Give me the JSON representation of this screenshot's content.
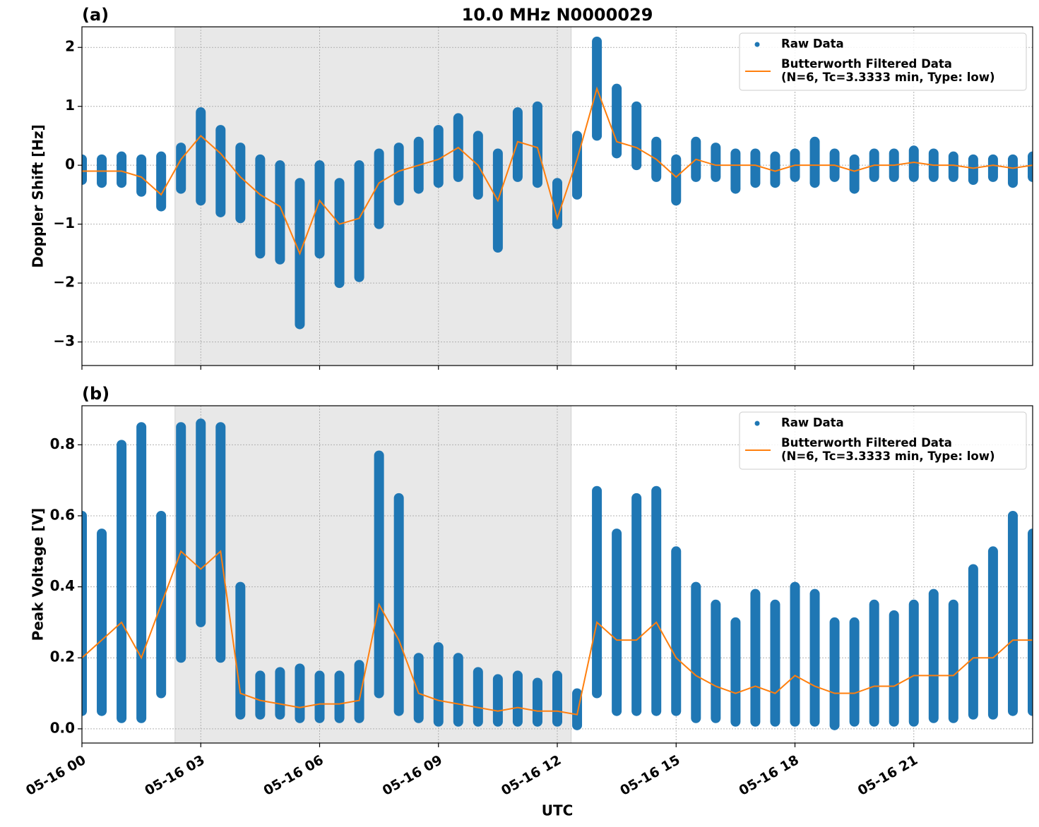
{
  "chart_data": [
    {
      "type": "line",
      "panel_label": "(a)",
      "title": "10.0 MHz N0000029",
      "ylabel": "Doppler Shift [Hz]",
      "xlim": [
        0,
        24
      ],
      "xticks": [
        0,
        3,
        6,
        9,
        12,
        15,
        18,
        21
      ],
      "ylim": [
        -3.4,
        2.35
      ],
      "yticks": [
        {
          "value": -3,
          "label": "−3"
        },
        {
          "value": -2,
          "label": "−2"
        },
        {
          "value": -1,
          "label": "−1"
        },
        0,
        1,
        2
      ],
      "grid": true,
      "legend": "upper right",
      "shade": [
        2.35,
        12.35
      ],
      "x": [
        0,
        0.5,
        1,
        1.5,
        2,
        2.5,
        3,
        3.5,
        4,
        4.5,
        5,
        5.5,
        6,
        6.5,
        7,
        7.5,
        8,
        8.5,
        9,
        9.5,
        10,
        10.5,
        11,
        11.5,
        12,
        12.5,
        13,
        13.5,
        14,
        14.5,
        15,
        15.5,
        16,
        16.5,
        17,
        17.5,
        18,
        18.5,
        19,
        19.5,
        20,
        20.5,
        21,
        21.5,
        22,
        22.5,
        23,
        23.5,
        24
      ],
      "series": [
        {
          "name": "Raw Data",
          "color": "#1f77b4",
          "values": [
            [
              -0.25,
              0.1
            ],
            [
              -0.3,
              0.1
            ],
            [
              -0.3,
              0.15
            ],
            [
              -0.45,
              0.1
            ],
            [
              -0.7,
              0.15
            ],
            [
              -0.4,
              0.3
            ],
            [
              -0.6,
              0.9
            ],
            [
              -0.8,
              0.6
            ],
            [
              -0.9,
              0.3
            ],
            [
              -1.5,
              0.1
            ],
            [
              -1.6,
              0
            ],
            [
              -2.7,
              -0.3
            ],
            [
              -1.5,
              0
            ],
            [
              -2,
              -0.3
            ],
            [
              -1.9,
              0
            ],
            [
              -1,
              0.2
            ],
            [
              -0.6,
              0.3
            ],
            [
              -0.4,
              0.4
            ],
            [
              -0.3,
              0.6
            ],
            [
              -0.2,
              0.8
            ],
            [
              -0.5,
              0.5
            ],
            [
              -1.4,
              0.2
            ],
            [
              -0.2,
              0.9
            ],
            [
              -0.3,
              1
            ],
            [
              -1,
              -0.3
            ],
            [
              -0.5,
              0.5
            ],
            [
              0.5,
              2.1
            ],
            [
              0.2,
              1.3
            ],
            [
              0,
              1
            ],
            [
              -0.2,
              0.4
            ],
            [
              -0.6,
              0.1
            ],
            [
              -0.2,
              0.4
            ],
            [
              -0.2,
              0.3
            ],
            [
              -0.4,
              0.2
            ],
            [
              -0.3,
              0.2
            ],
            [
              -0.3,
              0.15
            ],
            [
              -0.2,
              0.2
            ],
            [
              -0.3,
              0.4
            ],
            [
              -0.2,
              0.2
            ],
            [
              -0.4,
              0.1
            ],
            [
              -0.2,
              0.2
            ],
            [
              -0.2,
              0.2
            ],
            [
              -0.2,
              0.25
            ],
            [
              -0.2,
              0.2
            ],
            [
              -0.2,
              0.15
            ],
            [
              -0.25,
              0.1
            ],
            [
              -0.2,
              0.1
            ],
            [
              -0.3,
              0.1
            ],
            [
              -0.2,
              0.15
            ]
          ]
        },
        {
          "name": "Butterworth Filtered Data\n(N=6, Tc=3.3333 min, Type: low)",
          "color": "#ff7f0e",
          "values": [
            -0.1,
            -0.1,
            -0.1,
            -0.2,
            -0.5,
            0.1,
            0.5,
            0.2,
            -0.2,
            -0.5,
            -0.7,
            -1.5,
            -0.6,
            -1,
            -0.9,
            -0.3,
            -0.1,
            0,
            0.1,
            0.3,
            0,
            -0.6,
            0.4,
            0.3,
            -0.9,
            0.1,
            1.3,
            0.4,
            0.3,
            0.1,
            -0.2,
            0.1,
            0,
            0,
            0,
            -0.1,
            0,
            0,
            0,
            -0.1,
            0,
            0,
            0.05,
            0,
            0,
            -0.05,
            0,
            -0.05,
            0
          ]
        }
      ]
    },
    {
      "type": "line",
      "panel_label": "(b)",
      "ylabel": "Peak Voltage [V]",
      "xlabel": "UTC",
      "xlim": [
        0,
        24
      ],
      "xticks": [
        {
          "value": 0,
          "label": "05-16 00"
        },
        {
          "value": 3,
          "label": "05-16 03"
        },
        {
          "value": 6,
          "label": "05-16 06"
        },
        {
          "value": 9,
          "label": "05-16 09"
        },
        {
          "value": 12,
          "label": "05-16 12"
        },
        {
          "value": 15,
          "label": "05-16 15"
        },
        {
          "value": 18,
          "label": "05-16 18"
        },
        {
          "value": 21,
          "label": "05-16 21"
        }
      ],
      "ylim": [
        -0.04,
        0.91
      ],
      "yticks": [
        {
          "value": 0,
          "label": "0.0"
        },
        0.2,
        0.4,
        0.6,
        0.8
      ],
      "grid": true,
      "legend": "upper right",
      "shade": [
        2.35,
        12.35
      ],
      "x": [
        0,
        0.5,
        1,
        1.5,
        2,
        2.5,
        3,
        3.5,
        4,
        4.5,
        5,
        5.5,
        6,
        6.5,
        7,
        7.5,
        8,
        8.5,
        9,
        9.5,
        10,
        10.5,
        11,
        11.5,
        12,
        12.5,
        13,
        13.5,
        14,
        14.5,
        15,
        15.5,
        16,
        16.5,
        17,
        17.5,
        18,
        18.5,
        19,
        19.5,
        20,
        20.5,
        21,
        21.5,
        22,
        22.5,
        23,
        23.5,
        24
      ],
      "series": [
        {
          "name": "Raw Data",
          "color": "#1f77b4",
          "values": [
            [
              0.05,
              0.6
            ],
            [
              0.05,
              0.55
            ],
            [
              0.03,
              0.8
            ],
            [
              0.03,
              0.85
            ],
            [
              0.1,
              0.6
            ],
            [
              0.2,
              0.85
            ],
            [
              0.3,
              0.86
            ],
            [
              0.2,
              0.85
            ],
            [
              0.04,
              0.4
            ],
            [
              0.04,
              0.15
            ],
            [
              0.04,
              0.16
            ],
            [
              0.03,
              0.17
            ],
            [
              0.03,
              0.15
            ],
            [
              0.03,
              0.15
            ],
            [
              0.03,
              0.18
            ],
            [
              0.1,
              0.77
            ],
            [
              0.05,
              0.65
            ],
            [
              0.03,
              0.2
            ],
            [
              0.02,
              0.23
            ],
            [
              0.02,
              0.2
            ],
            [
              0.02,
              0.16
            ],
            [
              0.02,
              0.14
            ],
            [
              0.02,
              0.15
            ],
            [
              0.02,
              0.13
            ],
            [
              0.02,
              0.15
            ],
            [
              0.01,
              0.1
            ],
            [
              0.1,
              0.67
            ],
            [
              0.05,
              0.55
            ],
            [
              0.05,
              0.65
            ],
            [
              0.05,
              0.67
            ],
            [
              0.05,
              0.5
            ],
            [
              0.03,
              0.4
            ],
            [
              0.03,
              0.35
            ],
            [
              0.02,
              0.3
            ],
            [
              0.02,
              0.38
            ],
            [
              0.02,
              0.35
            ],
            [
              0.02,
              0.4
            ],
            [
              0.02,
              0.38
            ],
            [
              0.01,
              0.3
            ],
            [
              0.02,
              0.3
            ],
            [
              0.02,
              0.35
            ],
            [
              0.02,
              0.32
            ],
            [
              0.02,
              0.35
            ],
            [
              0.03,
              0.38
            ],
            [
              0.03,
              0.35
            ],
            [
              0.04,
              0.45
            ],
            [
              0.04,
              0.5
            ],
            [
              0.05,
              0.6
            ],
            [
              0.05,
              0.55
            ]
          ]
        },
        {
          "name": "Butterworth Filtered Data\n(N=6, Tc=3.3333 min, Type: low)",
          "color": "#ff7f0e",
          "values": [
            0.2,
            0.25,
            0.3,
            0.2,
            0.35,
            0.5,
            0.45,
            0.5,
            0.1,
            0.08,
            0.07,
            0.06,
            0.07,
            0.07,
            0.08,
            0.35,
            0.25,
            0.1,
            0.08,
            0.07,
            0.06,
            0.05,
            0.06,
            0.05,
            0.05,
            0.04,
            0.3,
            0.25,
            0.25,
            0.3,
            0.2,
            0.15,
            0.12,
            0.1,
            0.12,
            0.1,
            0.15,
            0.12,
            0.1,
            0.1,
            0.12,
            0.12,
            0.15,
            0.15,
            0.15,
            0.2,
            0.2,
            0.25,
            0.25
          ]
        }
      ]
    }
  ]
}
